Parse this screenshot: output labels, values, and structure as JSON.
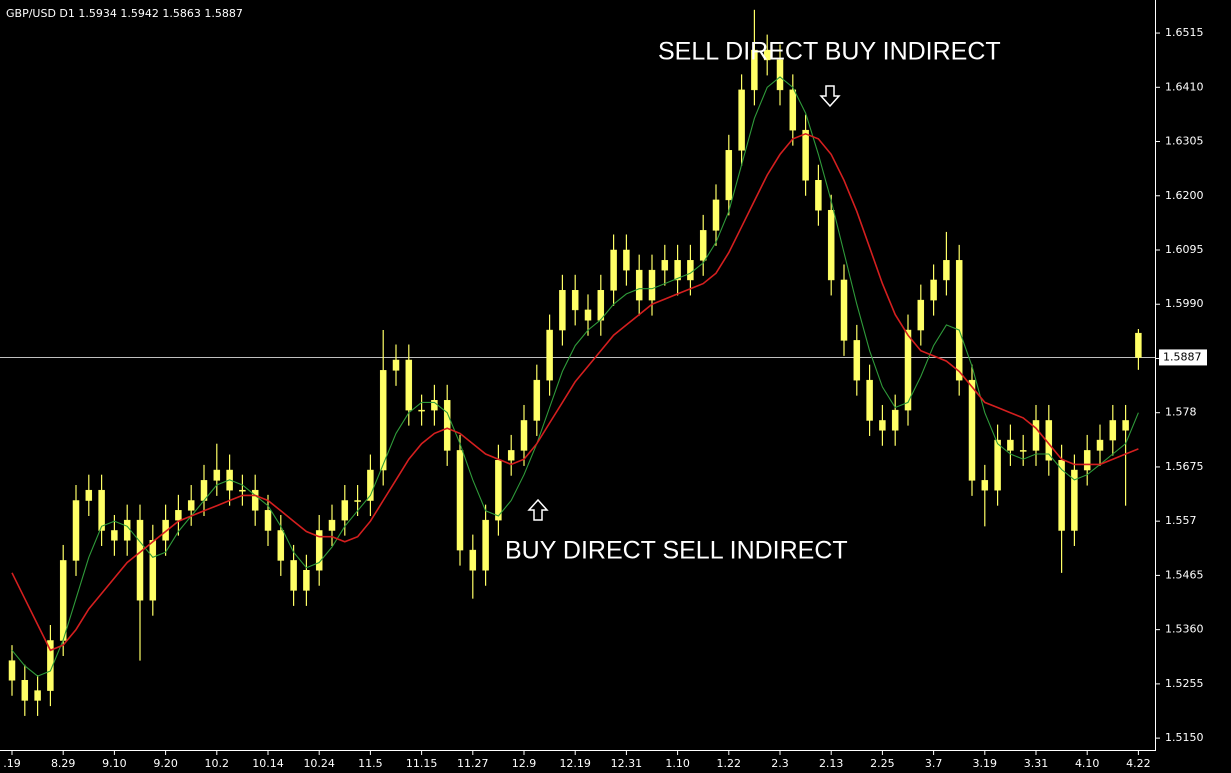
{
  "chart_data": {
    "type": "candlestick",
    "title": "GBP/USD D1  1.5934 1.5942 1.5863 1.5887",
    "categories": [
      ".19",
      null,
      null,
      null,
      "8.29",
      null,
      null,
      null,
      "9.10",
      null,
      null,
      null,
      "9.20",
      null,
      null,
      null,
      "10.2",
      null,
      null,
      null,
      "10.14",
      null,
      null,
      null,
      "10.24",
      null,
      null,
      null,
      "11.5",
      null,
      null,
      null,
      "11.15",
      null,
      null,
      null,
      "11.27",
      null,
      null,
      null,
      "12.9",
      null,
      null,
      null,
      "12.19",
      null,
      null,
      null,
      "12.31",
      null,
      null,
      null,
      "1.10",
      null,
      null,
      null,
      "1.22",
      null,
      null,
      null,
      "2.3",
      null,
      null,
      null,
      "2.13",
      null,
      null,
      null,
      "2.25",
      null,
      null,
      null,
      "3.7",
      null,
      null,
      null,
      "3.19",
      null,
      null,
      null,
      "3.31",
      null,
      null,
      null,
      "4.10",
      null,
      null,
      null,
      "4.22"
    ],
    "open": [
      1.53,
      1.5262,
      1.5223,
      1.5242,
      1.5339,
      1.5494,
      1.561,
      1.563,
      1.5552,
      1.5533,
      1.5572,
      1.5417,
      1.5533,
      1.5572,
      1.5591,
      1.561,
      1.5649,
      1.5669,
      1.563,
      1.563,
      1.5591,
      1.5552,
      1.5494,
      1.5436,
      1.5475,
      1.5552,
      1.5572,
      1.561,
      1.561,
      1.5669,
      1.5862,
      1.5882,
      1.5785,
      1.5785,
      1.5804,
      1.5707,
      1.5514,
      1.5475,
      1.5572,
      1.5688,
      1.5707,
      1.5765,
      1.5843,
      1.594,
      1.6017,
      1.5979,
      1.5959,
      1.6017,
      1.6095,
      1.6056,
      1.5998,
      1.6056,
      1.6075,
      1.6037,
      1.6075,
      1.6133,
      1.6192,
      1.6288,
      1.6405,
      1.6482,
      1.6463,
      1.6405,
      1.6327,
      1.623,
      1.6172,
      1.6037,
      1.592,
      1.5843,
      1.5765,
      1.5746,
      1.5785,
      1.594,
      1.5998,
      1.6037,
      1.6075,
      1.5843,
      1.5649,
      1.563,
      1.5727,
      1.5707,
      1.5707,
      1.5765,
      1.5688,
      1.5552,
      1.5669,
      1.5707,
      1.5727,
      1.5765,
      1.5934
    ],
    "high": [
      1.533,
      1.5292,
      1.5272,
      1.5369,
      1.5524,
      1.564,
      1.566,
      1.566,
      1.5582,
      1.5602,
      1.5602,
      1.5563,
      1.5602,
      1.5621,
      1.564,
      1.5679,
      1.572,
      1.5699,
      1.566,
      1.566,
      1.5621,
      1.5582,
      1.5524,
      1.5505,
      1.5582,
      1.5602,
      1.564,
      1.564,
      1.5699,
      1.594,
      1.5912,
      1.5912,
      1.5815,
      1.5834,
      1.5834,
      1.5737,
      1.5544,
      1.5602,
      1.5718,
      1.5737,
      1.5795,
      1.5873,
      1.597,
      1.6047,
      1.6047,
      1.6009,
      1.6047,
      1.6125,
      1.6125,
      1.6086,
      1.6086,
      1.6105,
      1.6105,
      1.6105,
      1.6163,
      1.6222,
      1.6318,
      1.6435,
      1.656,
      1.6512,
      1.6493,
      1.6435,
      1.6357,
      1.626,
      1.6202,
      1.6067,
      1.595,
      1.5873,
      1.5795,
      1.5815,
      1.597,
      1.6028,
      1.6067,
      1.613,
      1.6105,
      1.5873,
      1.5679,
      1.5757,
      1.5757,
      1.5737,
      1.5795,
      1.5795,
      1.5718,
      1.5699,
      1.5737,
      1.5757,
      1.5795,
      1.5795,
      1.5942
    ],
    "low": [
      1.5232,
      1.5193,
      1.5193,
      1.5212,
      1.5309,
      1.5464,
      1.558,
      1.5522,
      1.5503,
      1.5503,
      1.53,
      1.5387,
      1.5503,
      1.5542,
      1.5561,
      1.558,
      1.5619,
      1.56,
      1.56,
      1.5561,
      1.5522,
      1.5464,
      1.5406,
      1.5406,
      1.5445,
      1.5522,
      1.5542,
      1.558,
      1.558,
      1.5639,
      1.5832,
      1.5755,
      1.5755,
      1.5755,
      1.5677,
      1.5484,
      1.542,
      1.5445,
      1.5542,
      1.5658,
      1.5677,
      1.5735,
      1.5813,
      1.591,
      1.5949,
      1.5929,
      1.5929,
      1.5987,
      1.6026,
      1.5968,
      1.5968,
      1.6026,
      1.6007,
      1.6007,
      1.6045,
      1.6103,
      1.6162,
      1.6258,
      1.6375,
      1.6433,
      1.6375,
      1.6297,
      1.62,
      1.6142,
      1.6007,
      1.589,
      1.5813,
      1.5735,
      1.5716,
      1.5716,
      1.5755,
      1.591,
      1.5968,
      1.6007,
      1.5813,
      1.5619,
      1.556,
      1.56,
      1.5677,
      1.5677,
      1.5677,
      1.5658,
      1.547,
      1.5522,
      1.5639,
      1.5677,
      1.5697,
      1.56,
      1.5863
    ],
    "close": [
      1.5262,
      1.5223,
      1.5242,
      1.5339,
      1.5494,
      1.561,
      1.563,
      1.5552,
      1.5533,
      1.5572,
      1.5417,
      1.5533,
      1.5572,
      1.5591,
      1.561,
      1.5649,
      1.5669,
      1.563,
      1.563,
      1.5591,
      1.5552,
      1.5494,
      1.5436,
      1.5475,
      1.5552,
      1.5572,
      1.561,
      1.561,
      1.5669,
      1.5862,
      1.5882,
      1.5785,
      1.5785,
      1.5804,
      1.5707,
      1.5514,
      1.5475,
      1.5572,
      1.5688,
      1.5707,
      1.5765,
      1.5843,
      1.594,
      1.6017,
      1.5979,
      1.5959,
      1.6017,
      1.6095,
      1.6056,
      1.5998,
      1.6056,
      1.6075,
      1.6037,
      1.6075,
      1.6133,
      1.6192,
      1.6288,
      1.6405,
      1.6482,
      1.6463,
      1.6405,
      1.6327,
      1.623,
      1.6172,
      1.6037,
      1.592,
      1.5843,
      1.5765,
      1.5746,
      1.5785,
      1.594,
      1.5998,
      1.6037,
      1.6075,
      1.5843,
      1.5649,
      1.563,
      1.5727,
      1.5707,
      1.5707,
      1.5765,
      1.5688,
      1.5552,
      1.5669,
      1.5707,
      1.5727,
      1.5765,
      1.5746,
      1.5887
    ],
    "candle_color": "#ffff66",
    "lines": [
      {
        "color": "#2f9a3a",
        "values": [
          1.532,
          1.529,
          1.527,
          1.528,
          1.534,
          1.542,
          1.55,
          1.556,
          1.557,
          1.556,
          1.553,
          1.55,
          1.551,
          1.555,
          1.558,
          1.561,
          1.564,
          1.565,
          1.564,
          1.562,
          1.56,
          1.556,
          1.551,
          1.548,
          1.549,
          1.552,
          1.556,
          1.559,
          1.562,
          1.568,
          1.574,
          1.578,
          1.58,
          1.58,
          1.578,
          1.572,
          1.565,
          1.559,
          1.558,
          1.561,
          1.566,
          1.572,
          1.579,
          1.586,
          1.591,
          1.594,
          1.596,
          1.599,
          1.601,
          1.602,
          1.602,
          1.603,
          1.604,
          1.605,
          1.607,
          1.611,
          1.617,
          1.626,
          1.635,
          1.641,
          1.643,
          1.641,
          1.636,
          1.628,
          1.619,
          1.609,
          1.599,
          1.59,
          1.583,
          1.579,
          1.58,
          1.585,
          1.591,
          1.595,
          1.594,
          1.587,
          1.578,
          1.572,
          1.57,
          1.569,
          1.57,
          1.57,
          1.567,
          1.565,
          1.566,
          1.568,
          1.57,
          1.572,
          1.578
        ]
      },
      {
        "color": "#d41f1f",
        "values": [
          1.547,
          1.542,
          1.537,
          1.532,
          1.533,
          1.536,
          1.54,
          1.543,
          1.546,
          1.549,
          1.551,
          1.553,
          1.555,
          1.557,
          1.558,
          1.559,
          1.56,
          1.561,
          1.562,
          1.562,
          1.561,
          1.559,
          1.557,
          1.555,
          1.554,
          1.554,
          1.553,
          1.554,
          1.557,
          1.561,
          1.565,
          1.569,
          1.572,
          1.574,
          1.575,
          1.574,
          1.572,
          1.57,
          1.569,
          1.568,
          1.569,
          1.572,
          1.576,
          1.58,
          1.584,
          1.587,
          1.59,
          1.593,
          1.595,
          1.597,
          1.599,
          1.6,
          1.601,
          1.602,
          1.603,
          1.605,
          1.609,
          1.614,
          1.619,
          1.624,
          1.628,
          1.631,
          1.632,
          1.631,
          1.628,
          1.623,
          1.617,
          1.61,
          1.603,
          1.597,
          1.593,
          1.59,
          1.589,
          1.588,
          1.586,
          1.583,
          1.58,
          1.579,
          1.578,
          1.577,
          1.575,
          1.572,
          1.569,
          1.568,
          1.568,
          1.568,
          1.569,
          1.57,
          1.571
        ]
      }
    ],
    "last_price": 1.5887,
    "annotations": [
      "SELL DIRECT BUY INDIRECT",
      "BUY DIRECT SELL INDIRECT"
    ],
    "ylim": [
      1.5127,
      1.6579
    ],
    "yticks": [
      {
        "value": 1.515,
        "label": "1.5150"
      },
      1.5255,
      {
        "value": 1.536,
        "label": "1.5360"
      },
      1.5465,
      1.557,
      1.5675,
      1.578,
      1.5885,
      {
        "value": 1.599,
        "label": "1.5990"
      },
      1.6095,
      {
        "value": 1.62,
        "label": "1.6200"
      },
      1.6305,
      {
        "value": 1.641,
        "label": "1.6410"
      },
      1.6515
    ]
  }
}
